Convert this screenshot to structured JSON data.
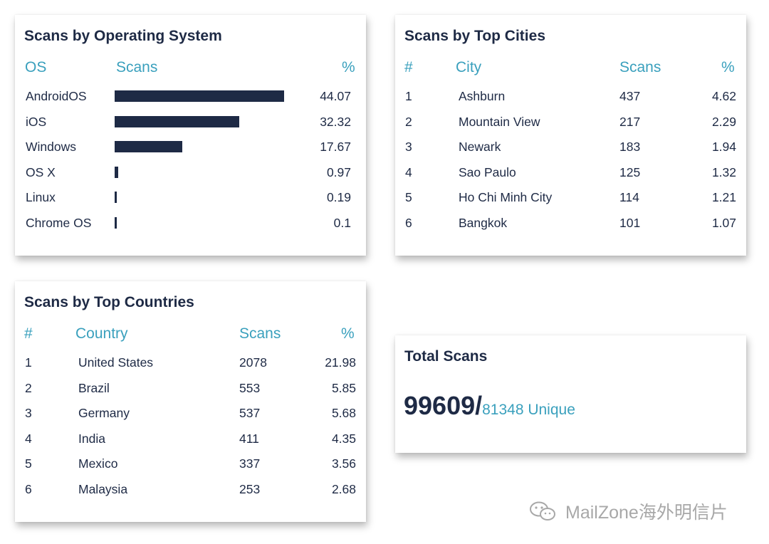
{
  "os_card": {
    "title": "Scans by Operating System",
    "headers": {
      "os": "OS",
      "scans": "Scans",
      "pct": "%"
    },
    "rows": [
      {
        "name": "AndroidOS",
        "pct": "44.07",
        "value": 44.07
      },
      {
        "name": "iOS",
        "pct": "32.32",
        "value": 32.32
      },
      {
        "name": "Windows",
        "pct": "17.67",
        "value": 17.67
      },
      {
        "name": "OS X",
        "pct": "0.97",
        "value": 0.97
      },
      {
        "name": "Linux",
        "pct": "0.19",
        "value": 0.19
      },
      {
        "name": "Chrome OS",
        "pct": "0.1",
        "value": 0.1
      }
    ]
  },
  "cities_card": {
    "title": "Scans by Top Cities",
    "headers": {
      "rank": "#",
      "city": "City",
      "scans": "Scans",
      "pct": "%"
    },
    "rows": [
      {
        "rank": "1",
        "city": "Ashburn",
        "scans": "437",
        "pct": "4.62"
      },
      {
        "rank": "2",
        "city": "Mountain View",
        "scans": "217",
        "pct": "2.29"
      },
      {
        "rank": "3",
        "city": "Newark",
        "scans": "183",
        "pct": "1.94"
      },
      {
        "rank": "4",
        "city": "Sao Paulo",
        "scans": "125",
        "pct": "1.32"
      },
      {
        "rank": "5",
        "city": "Ho Chi Minh City",
        "scans": "114",
        "pct": "1.21"
      },
      {
        "rank": "6",
        "city": "Bangkok",
        "scans": "101",
        "pct": "1.07"
      }
    ]
  },
  "countries_card": {
    "title": "Scans by Top Countries",
    "headers": {
      "rank": "#",
      "country": "Country",
      "scans": "Scans",
      "pct": "%"
    },
    "rows": [
      {
        "rank": "1",
        "country": "United States",
        "scans": "2078",
        "pct": "21.98"
      },
      {
        "rank": "2",
        "country": "Brazil",
        "scans": "553",
        "pct": "5.85"
      },
      {
        "rank": "3",
        "country": "Germany",
        "scans": "537",
        "pct": "5.68"
      },
      {
        "rank": "4",
        "country": "India",
        "scans": "411",
        "pct": "4.35"
      },
      {
        "rank": "5",
        "country": "Mexico",
        "scans": "337",
        "pct": "3.56"
      },
      {
        "rank": "6",
        "country": "Malaysia",
        "scans": "253",
        "pct": "2.68"
      }
    ]
  },
  "total_card": {
    "title": "Total Scans",
    "total": "99609/",
    "unique": "81348 Unique"
  },
  "watermark": {
    "text": "MailZone海外明信片",
    "icon": "wechat-icon"
  },
  "colors": {
    "dark": "#1e2a45",
    "accent": "#3aa0bd",
    "watermark": "#a8a8a8"
  }
}
